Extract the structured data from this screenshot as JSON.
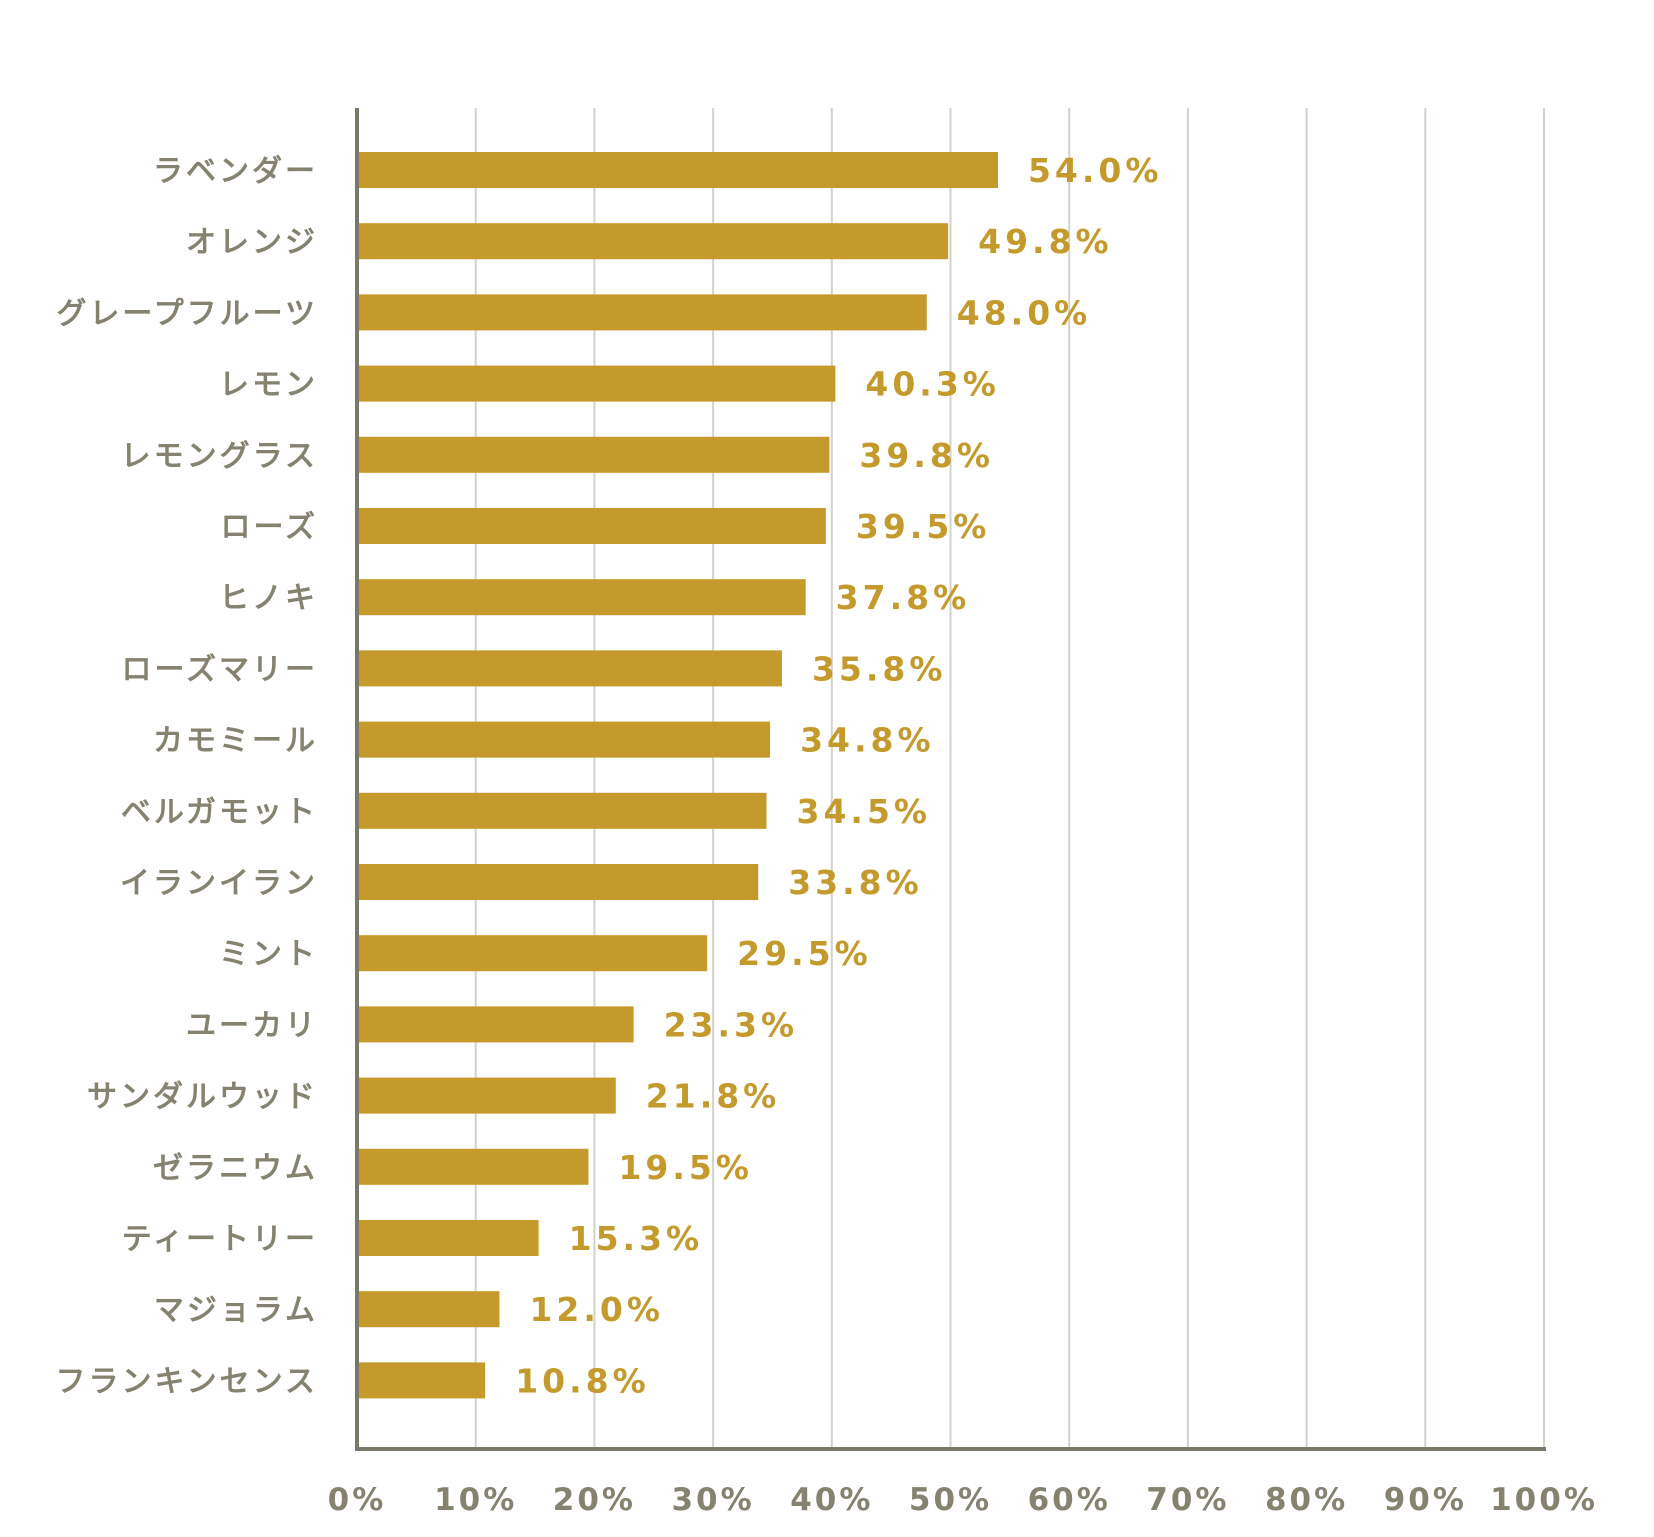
{
  "colors": {
    "bar": "#c59a2c",
    "value_label": "#c59a2c",
    "category_label": "#85826f",
    "tick_label": "#85826f",
    "axis": "#7a7868",
    "grid": "#d4d2c8"
  },
  "chart_data": {
    "type": "bar",
    "orientation": "horizontal",
    "categories": [
      "ラベンダー",
      "オレンジ",
      "グレープフルーツ",
      "レモン",
      "レモングラス",
      "ローズ",
      "ヒノキ",
      "ローズマリー",
      "カモミール",
      "ベルガモット",
      "イランイラン",
      "ミント",
      "ユーカリ",
      "サンダルウッド",
      "ゼラニウム",
      "ティートリー",
      "マジョラム",
      "フランキンセンス"
    ],
    "values": [
      54.0,
      49.8,
      48.0,
      40.3,
      39.8,
      39.5,
      37.8,
      35.8,
      34.8,
      34.5,
      33.8,
      29.5,
      23.3,
      21.8,
      19.5,
      15.3,
      12.0,
      10.8
    ],
    "value_labels": [
      "54.0%",
      "49.8%",
      "48.0%",
      "40.3%",
      "39.8%",
      "39.5%",
      "37.8%",
      "35.8%",
      "34.8%",
      "34.5%",
      "33.8%",
      "29.5%",
      "23.3%",
      "21.8%",
      "19.5%",
      "15.3%",
      "12.0%",
      "10.8%"
    ],
    "x_ticks": [
      "0%",
      "10%",
      "20%",
      "30%",
      "40%",
      "50%",
      "60%",
      "70%",
      "80%",
      "90%",
      "100%"
    ],
    "xlim": [
      0,
      100
    ],
    "grid": true,
    "legend": "none"
  }
}
